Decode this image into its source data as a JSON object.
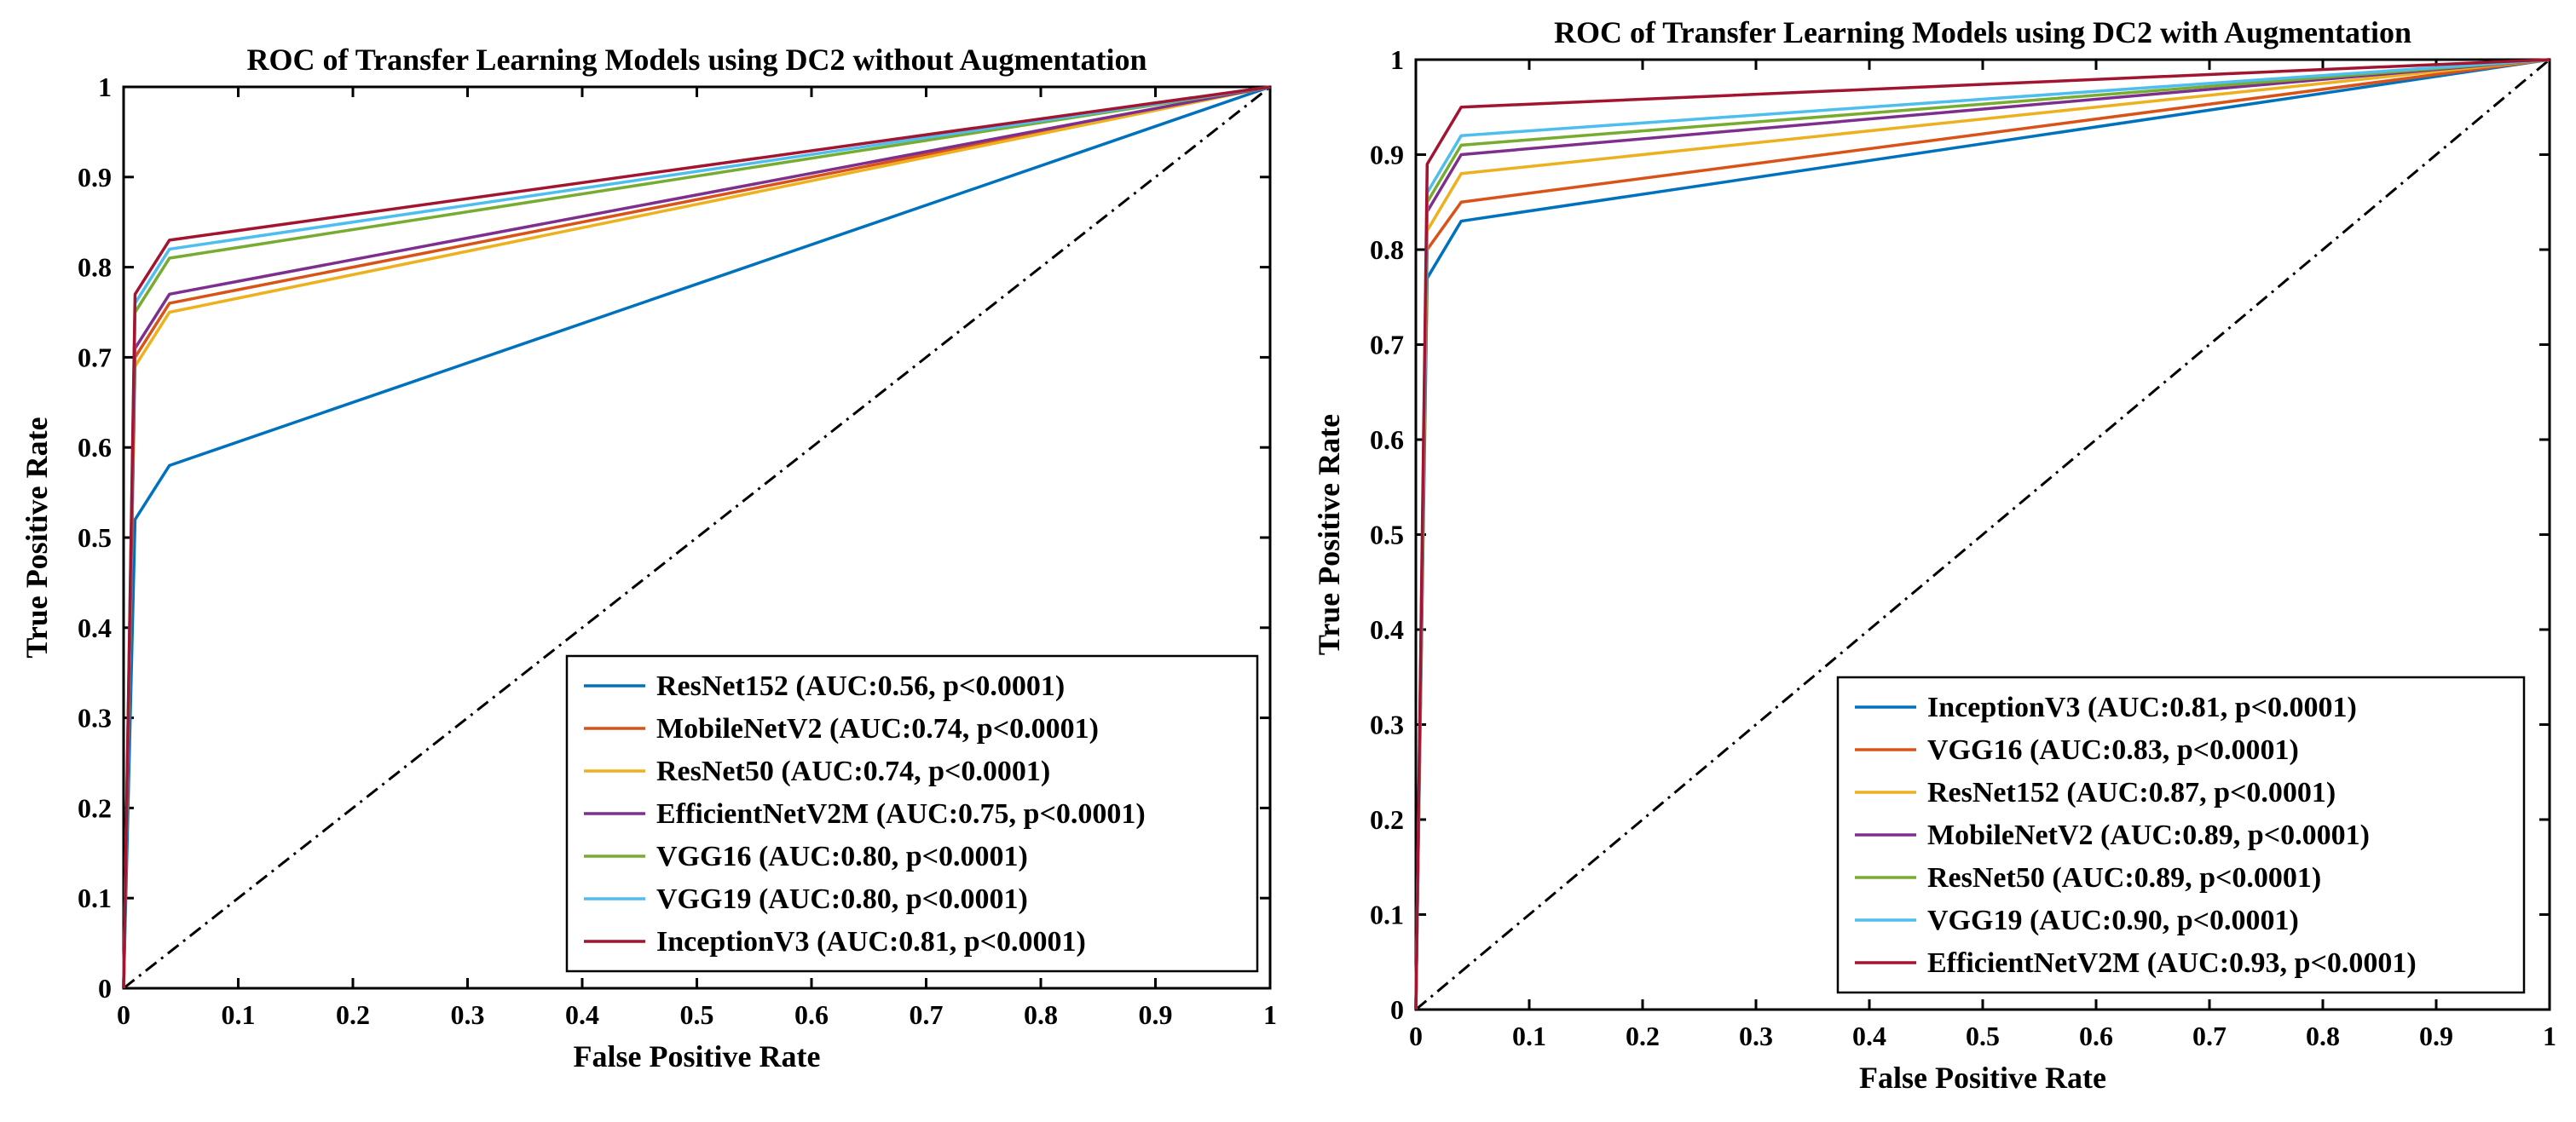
{
  "chart_data": [
    {
      "type": "line",
      "title": "ROC of Transfer Learning Models using DC2 without Augmentation",
      "xlabel": "False Positive Rate",
      "ylabel": "True Positive Rate",
      "xlim": [
        0,
        1
      ],
      "ylim": [
        0,
        1
      ],
      "xticks": [
        "0",
        "0.1",
        "0.2",
        "0.3",
        "0.4",
        "0.5",
        "0.6",
        "0.7",
        "0.8",
        "0.9",
        "1"
      ],
      "yticks": [
        "0",
        "0.1",
        "0.2",
        "0.3",
        "0.4",
        "0.5",
        "0.6",
        "0.7",
        "0.8",
        "0.9",
        "1"
      ],
      "grid": false,
      "legend_position": "bottom-right",
      "reference_line": {
        "name": "chance",
        "x": [
          0,
          1
        ],
        "y": [
          0,
          1
        ],
        "style": "dash-dot",
        "color": "#000000"
      },
      "series": [
        {
          "name": "ResNet152 (AUC:0.56, p<0.0001)",
          "color": "#0072BD",
          "x": [
            0,
            0.01,
            0.04,
            1
          ],
          "y": [
            0,
            0.52,
            0.58,
            1
          ]
        },
        {
          "name": "MobileNetV2 (AUC:0.74, p<0.0001)",
          "color": "#D95319",
          "x": [
            0,
            0.01,
            0.04,
            1
          ],
          "y": [
            0,
            0.7,
            0.76,
            1
          ]
        },
        {
          "name": "ResNet50 (AUC:0.74, p<0.0001)",
          "color": "#EDB120",
          "x": [
            0,
            0.01,
            0.04,
            1
          ],
          "y": [
            0,
            0.69,
            0.75,
            1
          ]
        },
        {
          "name": "EfficientNetV2M (AUC:0.75, p<0.0001)",
          "color": "#7E2F8E",
          "x": [
            0,
            0.01,
            0.04,
            1
          ],
          "y": [
            0,
            0.71,
            0.77,
            1
          ]
        },
        {
          "name": "VGG16 (AUC:0.80, p<0.0001)",
          "color": "#77AC30",
          "x": [
            0,
            0.01,
            0.04,
            1
          ],
          "y": [
            0,
            0.75,
            0.81,
            1
          ]
        },
        {
          "name": "VGG19 (AUC:0.80, p<0.0001)",
          "color": "#4DBEEE",
          "x": [
            0,
            0.01,
            0.04,
            1
          ],
          "y": [
            0,
            0.76,
            0.82,
            1
          ]
        },
        {
          "name": "InceptionV3 (AUC:0.81, p<0.0001)",
          "color": "#A2142F",
          "x": [
            0,
            0.01,
            0.04,
            1
          ],
          "y": [
            0,
            0.77,
            0.83,
            1
          ]
        }
      ]
    },
    {
      "type": "line",
      "title": "ROC of Transfer Learning Models using DC2 with Augmentation",
      "xlabel": "False Positive Rate",
      "ylabel": "True Positive Rate",
      "xlim": [
        0,
        1
      ],
      "ylim": [
        0,
        1
      ],
      "xticks": [
        "0",
        "0.1",
        "0.2",
        "0.3",
        "0.4",
        "0.5",
        "0.6",
        "0.7",
        "0.8",
        "0.9",
        "1"
      ],
      "yticks": [
        "0",
        "0.1",
        "0.2",
        "0.3",
        "0.4",
        "0.5",
        "0.6",
        "0.7",
        "0.8",
        "0.9",
        "1"
      ],
      "grid": false,
      "legend_position": "bottom-right",
      "reference_line": {
        "name": "chance",
        "x": [
          0,
          1
        ],
        "y": [
          0,
          1
        ],
        "style": "dash-dot",
        "color": "#000000"
      },
      "series": [
        {
          "name": "InceptionV3 (AUC:0.81, p<0.0001)",
          "color": "#0072BD",
          "x": [
            0,
            0.01,
            0.04,
            1
          ],
          "y": [
            0,
            0.77,
            0.83,
            1
          ]
        },
        {
          "name": "VGG16 (AUC:0.83, p<0.0001)",
          "color": "#D95319",
          "x": [
            0,
            0.01,
            0.04,
            1
          ],
          "y": [
            0,
            0.8,
            0.85,
            1
          ]
        },
        {
          "name": "ResNet152 (AUC:0.87, p<0.0001)",
          "color": "#EDB120",
          "x": [
            0,
            0.01,
            0.04,
            1
          ],
          "y": [
            0,
            0.82,
            0.88,
            1
          ]
        },
        {
          "name": "MobileNetV2 (AUC:0.89, p<0.0001)",
          "color": "#7E2F8E",
          "x": [
            0,
            0.01,
            0.04,
            1
          ],
          "y": [
            0,
            0.84,
            0.9,
            1
          ]
        },
        {
          "name": "ResNet50 (AUC:0.89, p<0.0001)",
          "color": "#77AC30",
          "x": [
            0,
            0.01,
            0.04,
            1
          ],
          "y": [
            0,
            0.85,
            0.91,
            1
          ]
        },
        {
          "name": "VGG19 (AUC:0.90, p<0.0001)",
          "color": "#4DBEEE",
          "x": [
            0,
            0.01,
            0.04,
            1
          ],
          "y": [
            0,
            0.86,
            0.92,
            1
          ]
        },
        {
          "name": "EfficientNetV2M (AUC:0.93, p<0.0001)",
          "color": "#A2142F",
          "x": [
            0,
            0.01,
            0.04,
            1
          ],
          "y": [
            0,
            0.89,
            0.95,
            1
          ]
        }
      ]
    }
  ]
}
